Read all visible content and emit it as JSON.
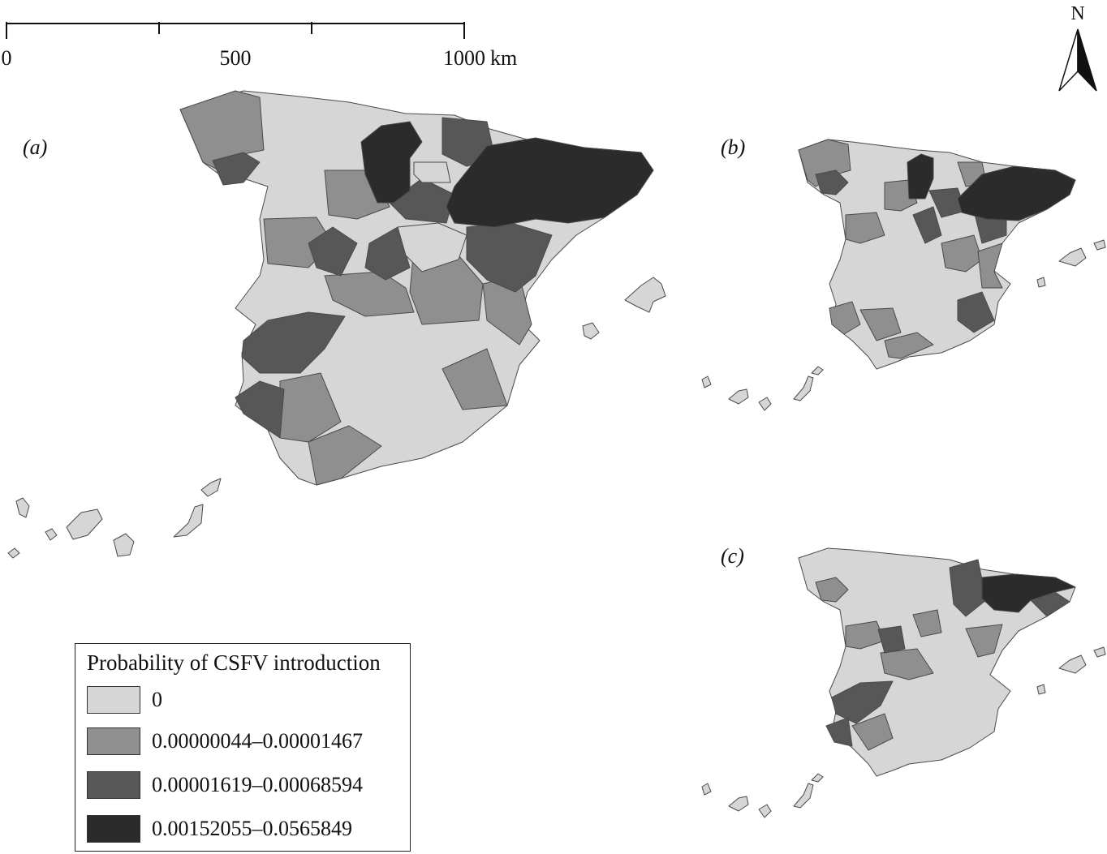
{
  "scale_bar": {
    "ticks": [
      "0",
      "500",
      "1000"
    ],
    "unit": "km"
  },
  "north_arrow": {
    "label": "N",
    "icon": "north-arrow-icon"
  },
  "panels": [
    {
      "id": "a",
      "label": "(a)"
    },
    {
      "id": "b",
      "label": "(b)"
    },
    {
      "id": "c",
      "label": "(c)"
    }
  ],
  "legend": {
    "title": "Probability of CSFV introduction",
    "classes": [
      {
        "label": "0",
        "color": "#d6d6d6"
      },
      {
        "label": "0.00000044–0.00001467",
        "color": "#8f8f8f"
      },
      {
        "label": "0.00001619–0.00068594",
        "color": "#575757"
      },
      {
        "label": "0.00152055–0.0565849",
        "color": "#2b2b2b"
      }
    ]
  }
}
